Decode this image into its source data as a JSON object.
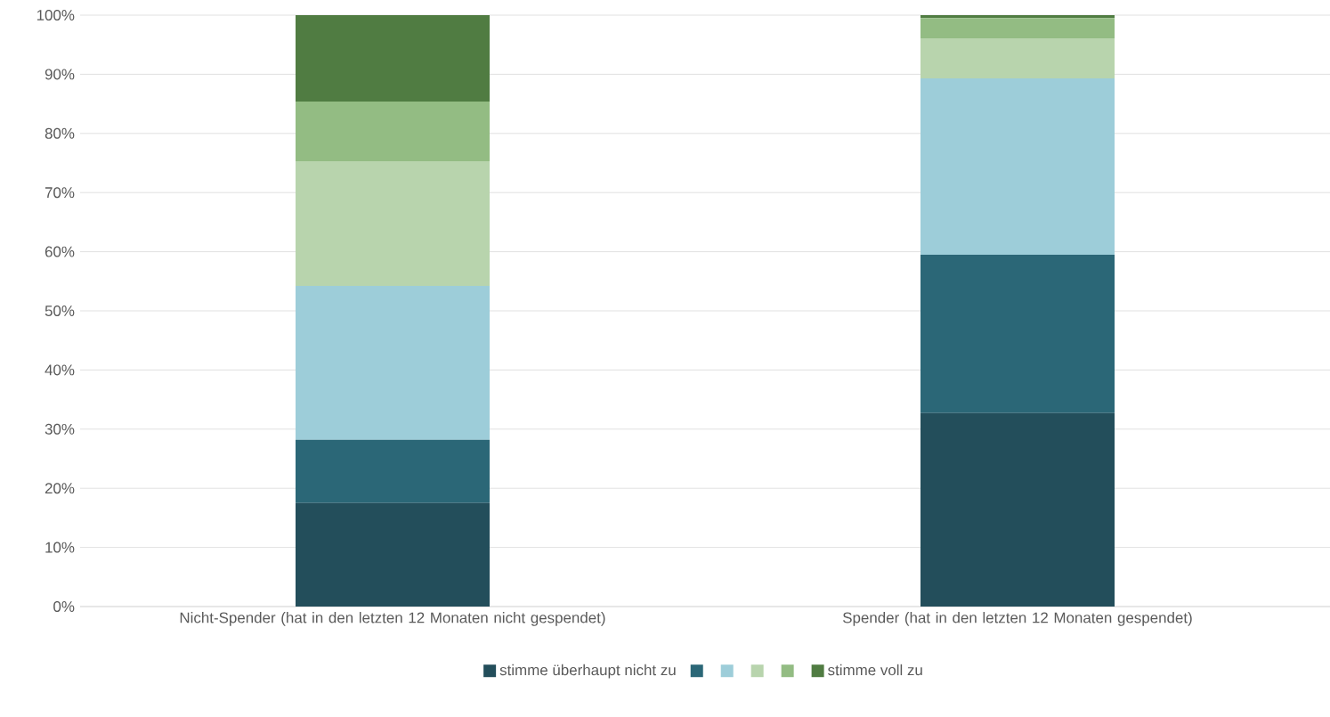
{
  "chart_data": {
    "type": "bar",
    "stacked": true,
    "categories": [
      "Nicht-Spender (hat in den letzten 12 Monaten nicht gespendet)",
      "Spender (hat in den letzten 12 Monaten gespendet)"
    ],
    "series": [
      {
        "name": "stimme überhaupt nicht zu",
        "color": "#234e5b",
        "values": [
          17.5,
          32.7
        ]
      },
      {
        "color": "#2b6777",
        "values": [
          10.7,
          26.8
        ]
      },
      {
        "color": "#9dcdd9",
        "values": [
          26.0,
          29.8
        ]
      },
      {
        "color": "#b8d4ad",
        "values": [
          21.1,
          6.8
        ]
      },
      {
        "color": "#93bc83",
        "values": [
          10.1,
          3.4
        ]
      },
      {
        "name": "stimme voll zu",
        "color": "#507c42",
        "values": [
          14.6,
          0.5
        ]
      }
    ],
    "ylim": [
      0,
      100
    ],
    "yticks": [
      {
        "value": 0,
        "label": "0%"
      },
      {
        "value": 10,
        "label": "10%"
      },
      {
        "value": 20,
        "label": "20%"
      },
      {
        "value": 30,
        "label": "30%"
      },
      {
        "value": 40,
        "label": "40%"
      },
      {
        "value": 50,
        "label": "50%"
      },
      {
        "value": 60,
        "label": "60%"
      },
      {
        "value": 70,
        "label": "70%"
      },
      {
        "value": 80,
        "label": "80%"
      },
      {
        "value": 90,
        "label": "90%"
      },
      {
        "value": 100,
        "label": "100%"
      }
    ],
    "grid": "y",
    "legend": "bottom"
  }
}
